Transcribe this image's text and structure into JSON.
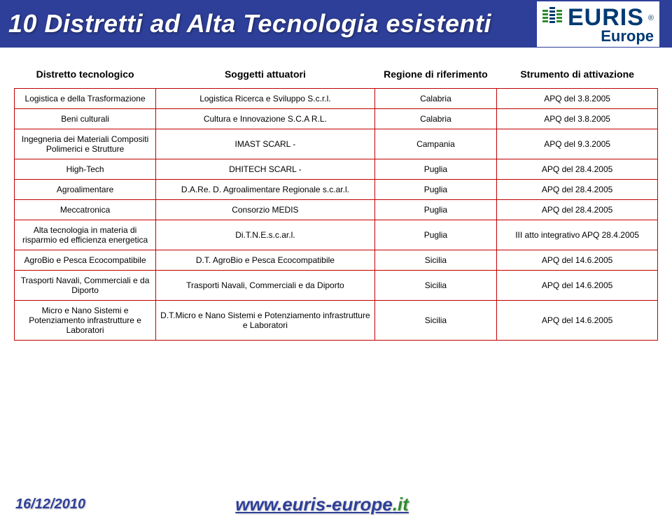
{
  "header": {
    "title": "10 Distretti ad Alta Tecnologia esistenti",
    "logo_main": "EURIS",
    "logo_sub": "Europe"
  },
  "table": {
    "headers": {
      "col1": "Distretto tecnologico",
      "col2": "Soggetti attuatori",
      "col3": "Regione di riferimento",
      "col4": "Strumento di attivazione"
    },
    "rows": [
      {
        "c1": "Logistica e della Trasformazione",
        "c2": "Logistica Ricerca e Sviluppo S.c.r.l.",
        "c3": "Calabria",
        "c4": "APQ del 3.8.2005"
      },
      {
        "c1": "Beni culturali",
        "c2": "Cultura e Innovazione S.C.A R.L.",
        "c3": "Calabria",
        "c4": "APQ del 3.8.2005"
      },
      {
        "c1": "Ingegneria dei Materiali Compositi Polimerici e Strutture",
        "c2": "IMAST SCARL -",
        "c3": "Campania",
        "c4": "APQ del 9.3.2005"
      },
      {
        "c1": "High-Tech",
        "c2": "DHITECH SCARL -",
        "c3": "Puglia",
        "c4": "APQ del 28.4.2005"
      },
      {
        "c1": "Agroalimentare",
        "c2": "D.A.Re. D. Agroalimentare Regionale s.c.ar.l.",
        "c3": "Puglia",
        "c4": "APQ del 28.4.2005"
      },
      {
        "c1": "Meccatronica",
        "c2": "Consorzio MEDIS",
        "c3": "Puglia",
        "c4": "APQ del 28.4.2005"
      },
      {
        "c1": "Alta tecnologia in materia di risparmio ed efficienza energetica",
        "c2": "Di.T.N.E.s.c.ar.l.",
        "c3": "Puglia",
        "c4": "III atto integrativo APQ 28.4.2005"
      },
      {
        "c1": "AgroBio e Pesca Ecocompatibile",
        "c2": "D.T. AgroBio e Pesca Ecocompatibile",
        "c3": "Sicilia",
        "c4": "APQ del 14.6.2005"
      },
      {
        "c1": "Trasporti Navali, Commerciali e da Diporto",
        "c2": "Trasporti Navali, Commerciali e da Diporto",
        "c3": "Sicilia",
        "c4": "APQ del 14.6.2005"
      },
      {
        "c1": "Micro e Nano Sistemi e Potenziamento infrastrutture e Laboratori",
        "c2": "D.T.Micro e Nano Sistemi e Potenziamento infrastrutture e Laboratori",
        "c3": "Sicilia",
        "c4": "APQ del 14.6.2005"
      }
    ]
  },
  "footer": {
    "date": "16/12/2010",
    "url_base": "www.euris-europe",
    "url_tld": ".it"
  },
  "colors": {
    "brand_blue": "#2e3f99",
    "dark_navy": "#003a73",
    "row_border": "#c00000",
    "green": "#2e8a2e"
  }
}
